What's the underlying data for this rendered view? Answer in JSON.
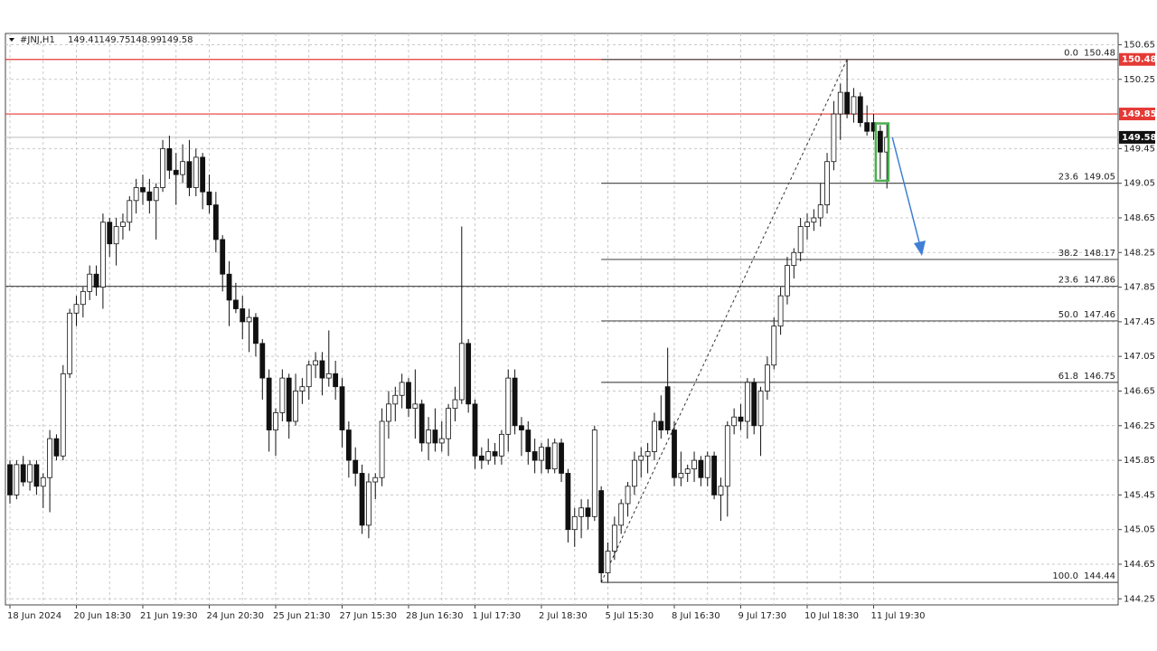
{
  "chart_data": {
    "type": "candlestick",
    "symbol": "#JNJ,H1",
    "header_ohlc": [
      149.41,
      149.75,
      148.99,
      149.58
    ],
    "categories": [
      "18 Jun 2024",
      null,
      null,
      null,
      null,
      null,
      null,
      null,
      null,
      null,
      "20 Jun 18:30",
      null,
      null,
      null,
      null,
      null,
      null,
      null,
      null,
      null,
      "21 Jun 19:30",
      null,
      null,
      null,
      null,
      null,
      null,
      null,
      null,
      null,
      "24 Jun 20:30",
      null,
      null,
      null,
      null,
      null,
      null,
      null,
      null,
      null,
      "25 Jun 21:30",
      null,
      null,
      null,
      null,
      null,
      null,
      null,
      null,
      null,
      "27 Jun 15:30",
      null,
      null,
      null,
      null,
      null,
      null,
      null,
      null,
      null,
      "28 Jun 16:30",
      null,
      null,
      null,
      null,
      null,
      null,
      null,
      null,
      null,
      "1 Jul 17:30",
      null,
      null,
      null,
      null,
      null,
      null,
      null,
      null,
      null,
      "2 Jul 18:30",
      null,
      null,
      null,
      null,
      null,
      null,
      null,
      null,
      null,
      "5 Jul 15:30",
      null,
      null,
      null,
      null,
      null,
      null,
      null,
      null,
      null,
      "8 Jul 16:30",
      null,
      null,
      null,
      null,
      null,
      null,
      null,
      null,
      null,
      "9 Jul 17:30",
      null,
      null,
      null,
      null,
      null,
      null,
      null,
      null,
      null,
      "10 Jul 18:30",
      null,
      null,
      null,
      null,
      null,
      null,
      null,
      null,
      null,
      "11 Jul 19:30",
      null,
      null
    ],
    "open": [
      145.8,
      145.45,
      145.8,
      145.6,
      145.8,
      145.55,
      145.65,
      146.1,
      145.9,
      146.85,
      147.55,
      147.65,
      147.8,
      148.0,
      147.85,
      148.6,
      148.35,
      148.55,
      148.6,
      148.85,
      149.0,
      148.95,
      148.85,
      149.0,
      149.45,
      149.2,
      149.15,
      149.3,
      149.0,
      149.35,
      148.95,
      148.8,
      148.4,
      148.0,
      147.7,
      147.6,
      147.45,
      147.5,
      147.2,
      146.8,
      146.2,
      146.4,
      146.8,
      146.3,
      146.65,
      146.7,
      146.95,
      147.0,
      146.8,
      146.85,
      146.7,
      146.2,
      145.85,
      145.7,
      145.1,
      145.6,
      145.65,
      146.3,
      146.5,
      146.6,
      146.75,
      146.45,
      146.5,
      146.05,
      146.2,
      146.05,
      146.1,
      146.45,
      146.55,
      147.2,
      146.5,
      145.9,
      145.85,
      145.95,
      145.9,
      146.15,
      146.8,
      146.25,
      146.2,
      145.95,
      145.85,
      146.0,
      145.75,
      146.05,
      145.7,
      145.05,
      145.2,
      145.3,
      145.2,
      145.5,
      144.55,
      144.8,
      145.1,
      145.35,
      145.55,
      145.85,
      145.9,
      145.95,
      146.3,
      146.7,
      146.2,
      145.65,
      145.7,
      145.75,
      145.85,
      145.65,
      145.9,
      145.45,
      145.55,
      146.25,
      146.35,
      146.3,
      146.75,
      146.25,
      146.65,
      146.95,
      147.4,
      147.75,
      148.1,
      148.25,
      148.55,
      148.6,
      148.65,
      148.8,
      149.3,
      149.85,
      150.1,
      149.85,
      150.05,
      149.75,
      149.75,
      149.65,
      149.41
    ],
    "high": [
      145.85,
      145.85,
      145.9,
      145.85,
      145.85,
      145.7,
      146.2,
      146.15,
      146.95,
      147.6,
      147.75,
      147.85,
      148.1,
      148.1,
      148.7,
      148.65,
      148.65,
      148.7,
      148.9,
      149.1,
      149.15,
      149.1,
      149.05,
      149.55,
      149.6,
      149.4,
      149.5,
      149.55,
      149.45,
      149.4,
      149.15,
      148.95,
      148.45,
      148.15,
      147.9,
      147.75,
      147.6,
      147.55,
      147.25,
      146.9,
      146.45,
      146.9,
      146.85,
      146.85,
      146.8,
      147.0,
      147.1,
      147.1,
      147.35,
      147.0,
      146.8,
      146.3,
      146.0,
      145.8,
      145.7,
      145.7,
      146.45,
      146.65,
      146.7,
      146.85,
      146.8,
      146.9,
      146.55,
      146.35,
      146.45,
      146.3,
      146.5,
      146.7,
      148.55,
      147.25,
      146.55,
      146.0,
      146.1,
      146.05,
      146.2,
      146.9,
      146.9,
      146.35,
      146.3,
      146.1,
      146.05,
      146.1,
      146.1,
      146.1,
      145.75,
      145.3,
      145.4,
      145.4,
      146.25,
      145.55,
      144.9,
      145.2,
      145.4,
      145.6,
      145.95,
      146.0,
      146.05,
      146.4,
      146.6,
      147.15,
      146.3,
      145.95,
      145.8,
      145.95,
      145.9,
      145.95,
      145.95,
      145.65,
      146.3,
      146.45,
      146.5,
      146.8,
      146.8,
      146.7,
      147.05,
      147.5,
      147.85,
      148.2,
      148.3,
      148.65,
      148.7,
      148.75,
      149.05,
      149.4,
      150.0,
      150.2,
      150.48,
      150.15,
      150.1,
      149.95,
      149.85,
      149.72,
      149.75
    ],
    "low": [
      145.35,
      145.4,
      145.55,
      145.5,
      145.45,
      145.3,
      145.25,
      145.85,
      145.85,
      146.8,
      147.4,
      147.5,
      147.7,
      147.75,
      147.6,
      148.2,
      148.1,
      148.4,
      148.5,
      148.7,
      148.8,
      148.7,
      148.4,
      148.95,
      149.1,
      148.8,
      149.05,
      148.9,
      148.9,
      148.75,
      148.7,
      148.25,
      147.8,
      147.4,
      147.55,
      147.25,
      147.1,
      147.05,
      146.55,
      145.95,
      145.9,
      146.3,
      146.1,
      146.25,
      146.5,
      146.55,
      146.8,
      146.6,
      146.7,
      146.55,
      146.0,
      145.65,
      145.55,
      145.0,
      144.95,
      145.4,
      145.55,
      146.1,
      146.3,
      146.45,
      146.35,
      146.1,
      145.95,
      145.85,
      145.95,
      145.95,
      145.9,
      146.3,
      146.5,
      146.4,
      145.75,
      145.75,
      145.8,
      145.8,
      145.8,
      145.95,
      146.15,
      145.9,
      145.8,
      145.7,
      145.7,
      145.7,
      145.7,
      145.6,
      144.9,
      144.85,
      144.95,
      145.05,
      145.15,
      144.44,
      144.44,
      144.7,
      145.0,
      145.2,
      145.45,
      145.65,
      145.7,
      145.85,
      146.1,
      146.15,
      145.55,
      145.55,
      145.6,
      145.6,
      145.55,
      145.55,
      145.4,
      145.15,
      145.2,
      146.15,
      146.2,
      146.1,
      146.15,
      145.9,
      146.55,
      146.9,
      147.3,
      147.65,
      147.95,
      148.15,
      148.4,
      148.5,
      148.55,
      148.7,
      149.2,
      149.55,
      149.8,
      149.75,
      149.7,
      149.6,
      149.55,
      149.1,
      148.99
    ],
    "close": [
      145.45,
      145.8,
      145.6,
      145.8,
      145.55,
      145.65,
      146.1,
      145.9,
      146.85,
      147.55,
      147.65,
      147.8,
      148.0,
      147.85,
      148.6,
      148.35,
      148.55,
      148.6,
      148.85,
      149.0,
      148.95,
      148.85,
      149.0,
      149.45,
      149.2,
      149.15,
      149.3,
      149.0,
      149.35,
      148.95,
      148.8,
      148.4,
      148.0,
      147.7,
      147.6,
      147.45,
      147.5,
      147.2,
      146.8,
      146.2,
      146.4,
      146.8,
      146.3,
      146.65,
      146.7,
      146.95,
      147.0,
      146.8,
      146.85,
      146.7,
      146.2,
      145.85,
      145.7,
      145.1,
      145.6,
      145.65,
      146.3,
      146.5,
      146.6,
      146.75,
      146.45,
      146.5,
      146.05,
      146.2,
      146.05,
      146.1,
      146.45,
      146.55,
      147.2,
      146.5,
      145.9,
      145.85,
      145.95,
      145.9,
      146.15,
      146.8,
      146.25,
      146.2,
      145.95,
      145.85,
      146.0,
      145.75,
      146.05,
      145.7,
      145.05,
      145.2,
      145.3,
      145.2,
      146.2,
      144.55,
      144.8,
      145.1,
      145.35,
      145.55,
      145.85,
      145.9,
      145.95,
      146.3,
      146.2,
      146.2,
      145.65,
      145.7,
      145.75,
      145.85,
      145.65,
      145.9,
      145.45,
      145.55,
      146.25,
      146.35,
      146.3,
      146.75,
      146.25,
      146.65,
      146.95,
      147.4,
      147.75,
      148.1,
      148.25,
      148.55,
      148.6,
      148.65,
      148.8,
      149.3,
      149.85,
      150.1,
      149.85,
      150.05,
      149.75,
      149.65,
      149.65,
      149.41,
      149.58
    ],
    "ylim": [
      144.18,
      150.78
    ],
    "yticks": [
      150.65,
      150.25,
      149.45,
      149.05,
      148.65,
      148.25,
      147.85,
      147.45,
      147.05,
      146.65,
      146.25,
      145.85,
      145.45,
      145.05,
      144.65,
      144.25
    ],
    "grid": true,
    "fibo_levels": [
      {
        "level": {
          "value": 0,
          "label": "0.0"
        },
        "price": 150.48
      },
      {
        "level": 23.6,
        "price": 149.05
      },
      {
        "level": 38.2,
        "price": 148.17
      },
      {
        "level": {
          "value": 50,
          "label": "50.0"
        },
        "price": 147.46
      },
      {
        "level": 61.8,
        "price": 146.75
      },
      {
        "level": {
          "value": 100,
          "label": "100.0"
        },
        "price": 144.44
      }
    ],
    "extra_level": {
      "level": 23.6,
      "price": 147.86
    },
    "price_lines": [
      {
        "value": 150.48,
        "color": "#e53935",
        "line_color": "#e53935"
      },
      {
        "value": 149.85,
        "color": "#e53935",
        "line_color": "#e53935"
      },
      {
        "value": 149.58,
        "color": "#111111",
        "line_color": "#c8c8c8"
      }
    ]
  }
}
